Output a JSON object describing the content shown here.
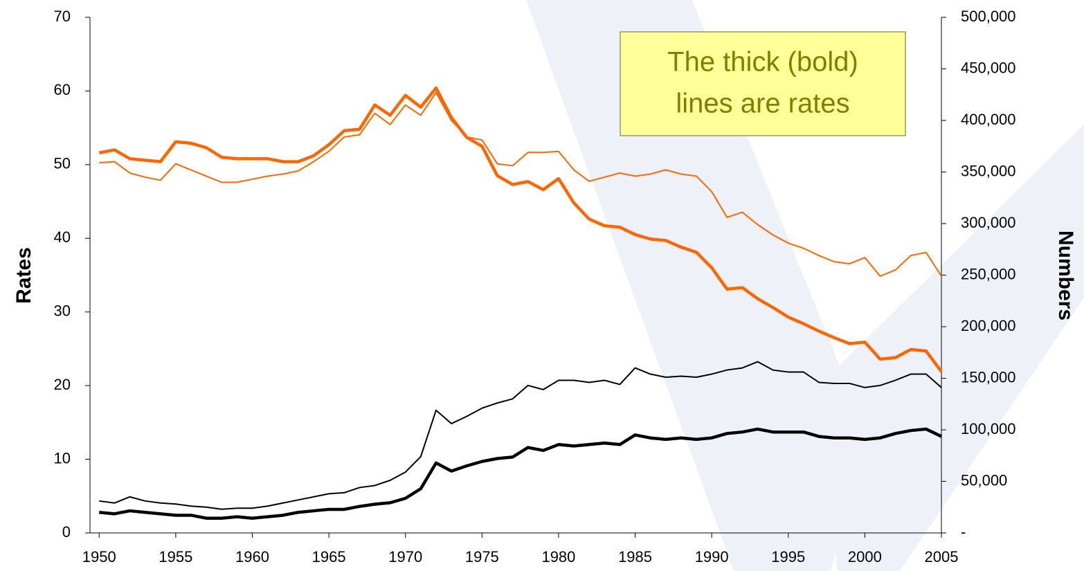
{
  "chart_data": {
    "type": "line",
    "annotation": [
      "The thick (bold)",
      "lines are rates"
    ],
    "ylabel": "Rates",
    "y2label": "Numbers",
    "x": [
      1950,
      1951,
      1952,
      1953,
      1954,
      1955,
      1956,
      1957,
      1958,
      1959,
      1960,
      1961,
      1962,
      1963,
      1964,
      1965,
      1966,
      1967,
      1968,
      1969,
      1970,
      1971,
      1972,
      1973,
      1974,
      1975,
      1976,
      1977,
      1978,
      1979,
      1980,
      1981,
      1982,
      1983,
      1984,
      1985,
      1986,
      1987,
      1988,
      1989,
      1990,
      1991,
      1992,
      1993,
      1994,
      1995,
      1996,
      1997,
      1998,
      1999,
      2000,
      2001,
      2002,
      2003,
      2004,
      2005
    ],
    "xlim": [
      1949.4,
      2005.0
    ],
    "xticks": [
      1950,
      1955,
      1960,
      1965,
      1970,
      1975,
      1980,
      1985,
      1990,
      1995,
      2000,
      2005
    ],
    "ylim": [
      0,
      70
    ],
    "yticks": [
      0,
      10,
      20,
      30,
      40,
      50,
      60,
      70
    ],
    "y2lim": [
      0,
      500000
    ],
    "y2ticks": [
      {
        "value": 0,
        "label": "-"
      },
      {
        "value": 50000,
        "label": "50,000"
      },
      {
        "value": 100000,
        "label": "100,000"
      },
      {
        "value": 150000,
        "label": "150,000"
      },
      {
        "value": 200000,
        "label": "200,000"
      },
      {
        "value": 250000,
        "label": "250,000"
      },
      {
        "value": 300000,
        "label": "300,000"
      },
      {
        "value": 350000,
        "label": "350,000"
      },
      {
        "value": 400000,
        "label": "400,000"
      },
      {
        "value": 450000,
        "label": "450,000"
      },
      {
        "value": 500000,
        "label": "500,000"
      }
    ],
    "series": [
      {
        "color": "#ff6600",
        "width": 2,
        "axis": "y2",
        "values": [
          359000,
          360000,
          349000,
          345000,
          342000,
          358000,
          352000,
          346000,
          340000,
          340000,
          343000,
          346000,
          348000,
          351000,
          360000,
          370000,
          384000,
          386000,
          407000,
          396000,
          415000,
          405000,
          427000,
          400000,
          384000,
          381000,
          358000,
          356000,
          369000,
          369000,
          370000,
          352000,
          341000,
          345000,
          349000,
          346000,
          348000,
          352000,
          348000,
          346000,
          331000,
          306000,
          311000,
          299000,
          289000,
          281000,
          276000,
          269000,
          263000,
          261000,
          267000,
          249000,
          255000,
          269000,
          272000,
          249000
        ]
      },
      {
        "color": "#ff6600",
        "width": 4.5,
        "axis": "y",
        "values": [
          51.6,
          52.0,
          50.8,
          50.6,
          50.4,
          53.1,
          52.9,
          52.3,
          51.0,
          50.8,
          50.8,
          50.8,
          50.4,
          50.4,
          51.2,
          52.7,
          54.6,
          54.8,
          58.1,
          56.7,
          59.4,
          57.8,
          60.4,
          56.4,
          53.7,
          52.5,
          48.5,
          47.3,
          47.7,
          46.6,
          48.1,
          44.8,
          42.6,
          41.7,
          41.5,
          40.5,
          39.9,
          39.7,
          38.8,
          38.1,
          36.0,
          33.1,
          33.3,
          31.8,
          30.6,
          29.3,
          28.4,
          27.4,
          26.5,
          25.7,
          25.9,
          23.6,
          23.8,
          24.9,
          24.7,
          21.9
        ]
      },
      {
        "color": "#000000",
        "width": 2,
        "axis": "y2",
        "values": [
          31000,
          29000,
          35000,
          31000,
          29000,
          28000,
          26000,
          25000,
          23000,
          24000,
          24000,
          26000,
          29000,
          32000,
          35000,
          38000,
          39000,
          44000,
          46000,
          51000,
          59000,
          74000,
          119000,
          106000,
          113000,
          121000,
          126000,
          130000,
          143000,
          139000,
          148000,
          148000,
          146000,
          148000,
          144000,
          160000,
          154000,
          151000,
          152000,
          151000,
          154000,
          158000,
          160000,
          166000,
          158000,
          156000,
          156000,
          146000,
          145000,
          145000,
          141000,
          143000,
          148000,
          154000,
          154000,
          141000
        ]
      },
      {
        "color": "#000000",
        "width": 4.5,
        "axis": "y",
        "values": [
          2.8,
          2.6,
          3.0,
          2.8,
          2.6,
          2.4,
          2.4,
          2.0,
          2.0,
          2.2,
          2.0,
          2.2,
          2.4,
          2.8,
          3.0,
          3.2,
          3.2,
          3.6,
          3.9,
          4.1,
          4.7,
          6.0,
          9.5,
          8.4,
          9.1,
          9.7,
          10.1,
          10.3,
          11.6,
          11.2,
          12.0,
          11.8,
          12.0,
          12.2,
          12.0,
          13.3,
          12.9,
          12.7,
          12.9,
          12.7,
          12.9,
          13.5,
          13.7,
          14.1,
          13.7,
          13.7,
          13.7,
          13.1,
          12.9,
          12.9,
          12.7,
          12.9,
          13.5,
          13.9,
          14.1,
          13.1
        ]
      }
    ]
  }
}
